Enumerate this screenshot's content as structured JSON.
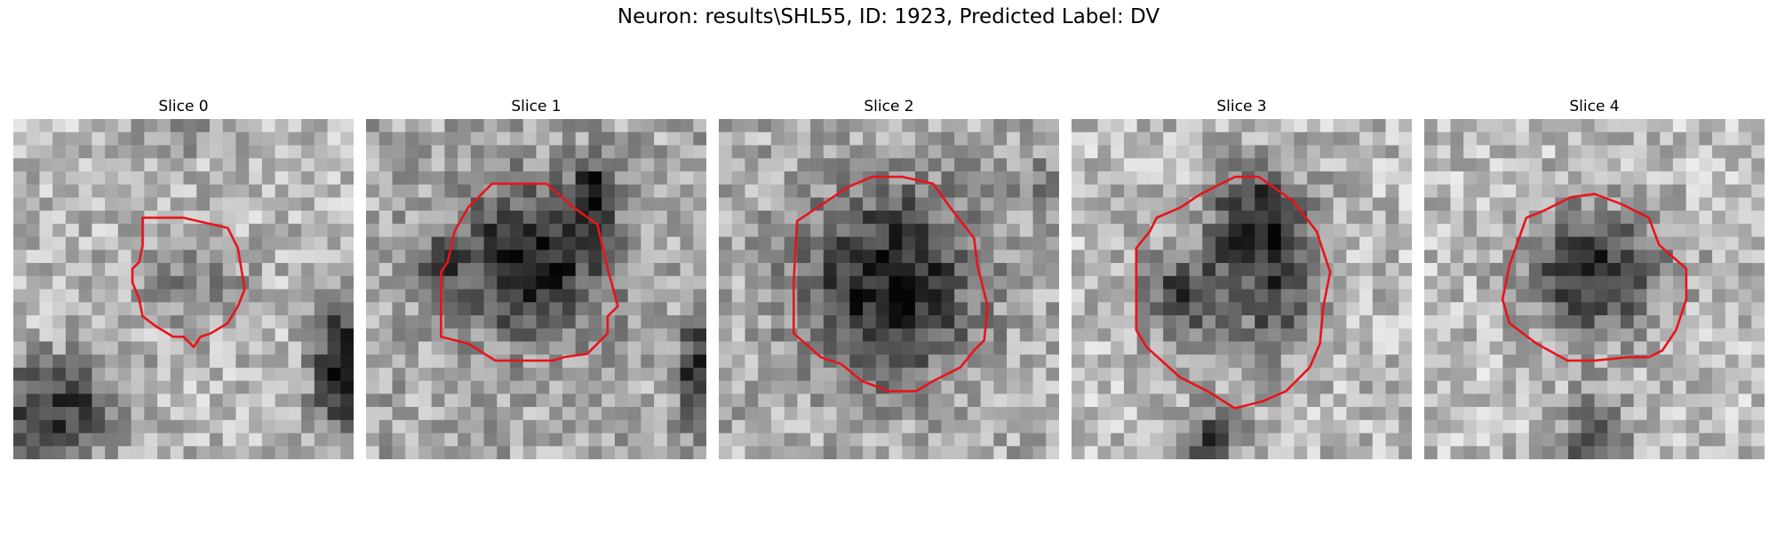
{
  "title": "Neuron: results\\SHL55, ID: 1923, Predicted Label: DV",
  "contour_color": "#e8141c",
  "panels": [
    {
      "title": "Slice 0"
    },
    {
      "title": "Slice 1"
    },
    {
      "title": "Slice 2"
    },
    {
      "title": "Slice 3"
    },
    {
      "title": "Slice 4"
    }
  ]
}
